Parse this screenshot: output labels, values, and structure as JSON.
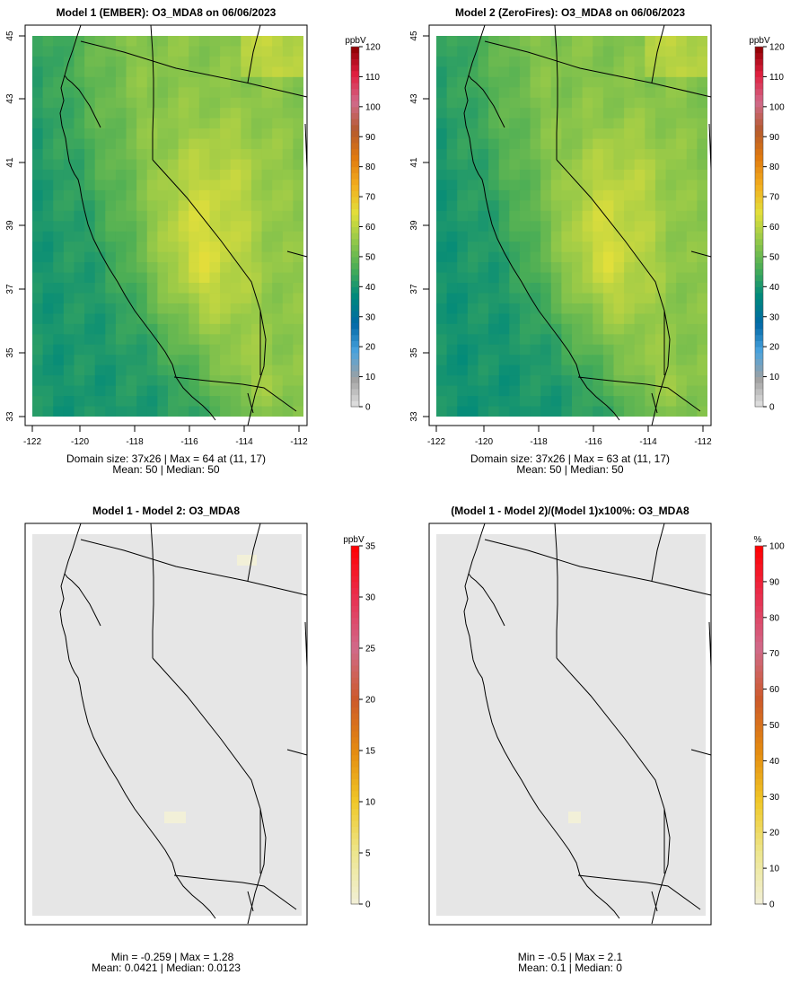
{
  "colors": {
    "frame": "#000000",
    "diff_fill": "#e6e6e6",
    "ozone_scale": [
      "#e3e3e3",
      "#a0a0a0",
      "#4ba3de",
      "#0068a6",
      "#00897b",
      "#49ad56",
      "#93c849",
      "#e2df3b",
      "#f2ad1e",
      "#e07a0f",
      "#b45a2e",
      "#d06a8a",
      "#e02040",
      "#8b0000"
    ],
    "diff_scale": [
      "#f2f0d8",
      "#ede68e",
      "#f0c828",
      "#e48a10",
      "#cc5a2a",
      "#d06a8a",
      "#e83050",
      "#ff0000"
    ]
  },
  "panels": [
    {
      "id": "model1",
      "title": "Model 1 (EMBER): O3_MDA8 on 06/06/2023",
      "kind": "ozone",
      "show_axes": true,
      "unit": "ppbV",
      "colorbar_ticks": [
        "0",
        "10",
        "20",
        "30",
        "40",
        "50",
        "60",
        "70",
        "80",
        "90",
        "100",
        "110",
        "120"
      ],
      "stats": [
        "Domain size: 37x26 | Max = 64 at (11, 17)",
        "Mean: 50 |  Median: 50"
      ],
      "chart_data": {
        "type": "heatmap",
        "variable": "O3_MDA8",
        "unit": "ppbV",
        "domain_size": "37x26",
        "max": 64,
        "max_at": "(11, 17)",
        "mean": 50,
        "median": 50,
        "scale_range": [
          0,
          120
        ],
        "xlim": [
          -122,
          -112
        ],
        "ylim": [
          33,
          45
        ],
        "x_ticks": [
          -122,
          -120,
          -118,
          -116,
          -114,
          -112
        ],
        "y_ticks": [
          33,
          35,
          37,
          39,
          41,
          43,
          45
        ]
      }
    },
    {
      "id": "model2",
      "title": "Model 2 (ZeroFires): O3_MDA8 on 06/06/2023",
      "kind": "ozone",
      "show_axes": true,
      "unit": "ppbV",
      "colorbar_ticks": [
        "0",
        "10",
        "20",
        "30",
        "40",
        "50",
        "60",
        "70",
        "80",
        "90",
        "100",
        "110",
        "120"
      ],
      "stats": [
        "Domain size: 37x26 | Max = 63 at (11, 17)",
        "Mean: 50 |  Median: 50"
      ],
      "chart_data": {
        "type": "heatmap",
        "variable": "O3_MDA8",
        "unit": "ppbV",
        "domain_size": "37x26",
        "max": 63,
        "max_at": "(11, 17)",
        "mean": 50,
        "median": 50,
        "scale_range": [
          0,
          120
        ],
        "xlim": [
          -122,
          -112
        ],
        "ylim": [
          33,
          45
        ],
        "x_ticks": [
          -122,
          -120,
          -118,
          -116,
          -114,
          -112
        ],
        "y_ticks": [
          33,
          35,
          37,
          39,
          41,
          43,
          45
        ]
      }
    },
    {
      "id": "diff",
      "title": "Model 1 - Model 2: O3_MDA8",
      "kind": "diff",
      "show_axes": false,
      "unit": "ppbV",
      "colorbar_ticks": [
        "0",
        "5",
        "10",
        "15",
        "20",
        "25",
        "30",
        "35"
      ],
      "stats": [
        "Min = -0.259 | Max = 1.28",
        "Mean: 0.0421 |  Median: 0.0123"
      ],
      "chart_data": {
        "type": "heatmap",
        "variable": "O3_MDA8",
        "unit": "ppbV",
        "min": -0.259,
        "max": 1.28,
        "mean": 0.0421,
        "median": 0.0123,
        "scale_range": [
          0,
          35
        ]
      }
    },
    {
      "id": "pct",
      "title": "(Model 1 - Model 2)/(Model 1)x100%: O3_MDA8",
      "kind": "diff",
      "show_axes": false,
      "unit": "%",
      "colorbar_ticks": [
        "0",
        "10",
        "20",
        "30",
        "40",
        "50",
        "60",
        "70",
        "80",
        "90",
        "100"
      ],
      "stats": [
        "Min = -0.5 | Max = 2.1",
        "Mean: 0.1 |  Median: 0"
      ],
      "chart_data": {
        "type": "heatmap",
        "variable": "O3_MDA8",
        "unit": "%",
        "min": -0.5,
        "max": 2.1,
        "mean": 0.1,
        "median": 0,
        "scale_range": [
          0,
          100
        ]
      }
    }
  ]
}
